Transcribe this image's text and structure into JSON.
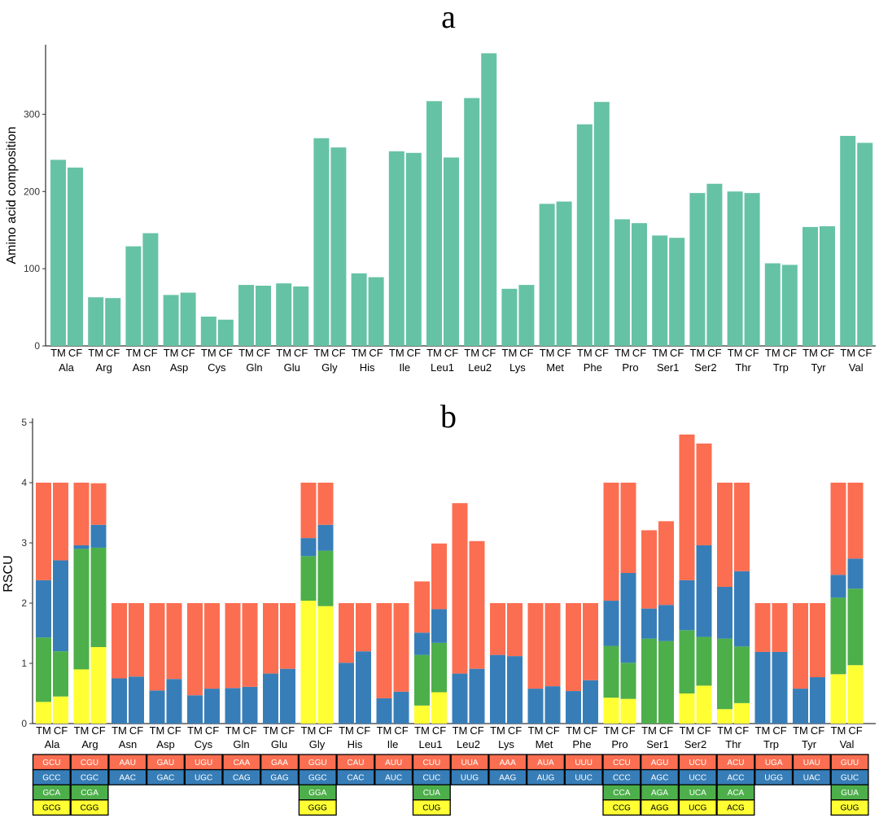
{
  "chart_data": [
    {
      "type": "bar",
      "title": "a",
      "ylabel": "Amino acid composition",
      "ylim": [
        0,
        390
      ],
      "yticks": [
        0,
        100,
        200,
        300
      ],
      "bar_color": "#66c2a5",
      "subgroups": [
        "TM",
        "CF"
      ],
      "categories": [
        "Ala",
        "Arg",
        "Asn",
        "Asp",
        "Cys",
        "Gln",
        "Glu",
        "Gly",
        "His",
        "Ile",
        "Leu1",
        "Leu2",
        "Lys",
        "Met",
        "Phe",
        "Pro",
        "Ser1",
        "Ser2",
        "Thr",
        "Trp",
        "Tyr",
        "Val"
      ],
      "series": [
        {
          "name": "TM",
          "values": [
            241,
            63,
            129,
            66,
            38,
            79,
            81,
            269,
            94,
            252,
            317,
            321,
            74,
            184,
            287,
            164,
            143,
            198,
            200,
            107,
            154,
            272
          ]
        },
        {
          "name": "CF",
          "values": [
            231,
            62,
            146,
            69,
            34,
            78,
            77,
            257,
            89,
            250,
            244,
            379,
            79,
            187,
            316,
            159,
            140,
            210,
            198,
            105,
            155,
            263
          ]
        }
      ]
    },
    {
      "type": "bar",
      "stacked": true,
      "title": "b",
      "ylabel": "RSCU",
      "ylim": [
        0,
        5.15
      ],
      "yticks": [
        0,
        1,
        2,
        3,
        4,
        5
      ],
      "subgroups": [
        "TM",
        "CF"
      ],
      "layer_colors": [
        "#ffff33",
        "#4daf4a",
        "#377eb8",
        "#fc6e51"
      ],
      "categories": [
        "Ala",
        "Arg",
        "Asn",
        "Asp",
        "Cys",
        "Gln",
        "Glu",
        "Gly",
        "His",
        "Ile",
        "Leu1",
        "Leu2",
        "Lys",
        "Met",
        "Phe",
        "Pro",
        "Ser1",
        "Ser2",
        "Thr",
        "Trp",
        "Tyr",
        "Val"
      ],
      "stacks": {
        "TM": [
          [
            0.36,
            1.07,
            0.95,
            1.62
          ],
          [
            0.9,
            2.0,
            0.06,
            1.04
          ],
          [
            0,
            0,
            0.75,
            1.25
          ],
          [
            0,
            0,
            0.55,
            1.45
          ],
          [
            0,
            0,
            0.47,
            1.53
          ],
          [
            0,
            0,
            0.59,
            1.41
          ],
          [
            0,
            0,
            0.83,
            1.17
          ],
          [
            2.04,
            0.74,
            0.3,
            0.92
          ],
          [
            0,
            0,
            1.01,
            0.99
          ],
          [
            0,
            0,
            0.42,
            1.58
          ],
          [
            0.3,
            0.84,
            0.37,
            0.85
          ],
          [
            0,
            0,
            0.83,
            2.83
          ],
          [
            0,
            0,
            1.14,
            0.86
          ],
          [
            0,
            0,
            0.58,
            1.42
          ],
          [
            0,
            0,
            0.54,
            1.46
          ],
          [
            0.43,
            0.86,
            0.75,
            1.96
          ],
          [
            0,
            1.41,
            0.5,
            1.3
          ],
          [
            0.5,
            1.05,
            0.83,
            2.42
          ],
          [
            0.24,
            1.17,
            0.86,
            1.73
          ],
          [
            0,
            0,
            1.19,
            0.81
          ],
          [
            0,
            0,
            0.58,
            1.42
          ],
          [
            0.82,
            1.27,
            0.38,
            1.53
          ]
        ],
        "CF": [
          [
            0.45,
            0.75,
            1.51,
            1.29
          ],
          [
            1.27,
            1.65,
            0.38,
            0.69
          ],
          [
            0,
            0,
            0.78,
            1.22
          ],
          [
            0,
            0,
            0.74,
            1.26
          ],
          [
            0,
            0,
            0.58,
            1.42
          ],
          [
            0,
            0,
            0.61,
            1.39
          ],
          [
            0,
            0,
            0.91,
            1.09
          ],
          [
            1.95,
            0.92,
            0.43,
            0.7
          ],
          [
            0,
            0,
            1.2,
            0.8
          ],
          [
            0,
            0,
            0.53,
            1.47
          ],
          [
            0.52,
            0.82,
            0.56,
            1.09
          ],
          [
            0,
            0,
            0.91,
            2.12
          ],
          [
            0,
            0,
            1.12,
            0.88
          ],
          [
            0,
            0,
            0.62,
            1.38
          ],
          [
            0,
            0,
            0.72,
            1.28
          ],
          [
            0.41,
            0.6,
            1.49,
            1.5
          ],
          [
            0,
            1.37,
            0.6,
            1.39
          ],
          [
            0.63,
            0.81,
            1.52,
            1.69
          ],
          [
            0.34,
            0.94,
            1.25,
            1.47
          ],
          [
            0,
            0,
            1.19,
            0.81
          ],
          [
            0,
            0,
            0.77,
            1.23
          ],
          [
            0.97,
            1.27,
            0.5,
            1.26
          ]
        ]
      },
      "codon_legend": {
        "row_colors": [
          "#fc6e51",
          "#377eb8",
          "#4daf4a",
          "#ffff33"
        ],
        "rows": [
          [
            "GCU",
            "CGU",
            "AAU",
            "GAU",
            "UGU",
            "CAA",
            "GAA",
            "GGU",
            "CAU",
            "AUU",
            "CUU",
            "UUA",
            "AAA",
            "AUA",
            "UUU",
            "CCU",
            "AGU",
            "UCU",
            "ACU",
            "UGA",
            "UAU",
            "GUU"
          ],
          [
            "GCC",
            "CGC",
            "AAC",
            "GAC",
            "UGC",
            "CAG",
            "GAG",
            "GGC",
            "CAC",
            "AUC",
            "CUC",
            "UUG",
            "AAG",
            "AUG",
            "UUC",
            "CCC",
            "AGC",
            "UCC",
            "ACC",
            "UGG",
            "UAC",
            "GUC"
          ],
          [
            "GCA",
            "CGA",
            "",
            "",
            "",
            "",
            "",
            "GGA",
            "",
            "",
            "CUA",
            "",
            "",
            "",
            "",
            "CCA",
            "AGA",
            "UCA",
            "ACA",
            "",
            "",
            "GUA"
          ],
          [
            "GCG",
            "CGG",
            "",
            "",
            "",
            "",
            "",
            "GGG",
            "",
            "",
            "CUG",
            "",
            "",
            "",
            "",
            "CCG",
            "AGG",
            "UCG",
            "ACG",
            "",
            "",
            "GUG"
          ]
        ]
      }
    }
  ]
}
